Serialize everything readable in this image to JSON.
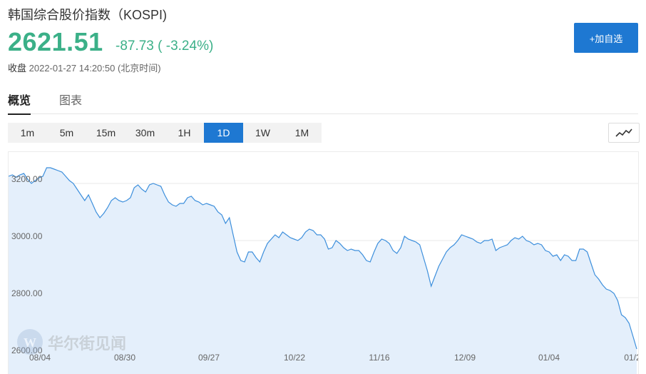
{
  "header": {
    "title": "韩国综合股价指数（KOSPI)",
    "price": "2621.51",
    "change": "-87.73 ( -3.24%)",
    "status_label": "收盘",
    "timestamp": "2022-01-27 14:20:50 (北京时间)"
  },
  "actions": {
    "add_watchlist": "+加自选"
  },
  "tabs": [
    {
      "label": "概览",
      "active": true
    },
    {
      "label": "图表",
      "active": false
    }
  ],
  "ranges": [
    {
      "label": "1m",
      "active": false
    },
    {
      "label": "5m",
      "active": false
    },
    {
      "label": "15m",
      "active": false
    },
    {
      "label": "30m",
      "active": false
    },
    {
      "label": "1H",
      "active": false
    },
    {
      "label": "1D",
      "active": true
    },
    {
      "label": "1W",
      "active": false
    },
    {
      "label": "1M",
      "active": false
    }
  ],
  "watermark": "华尔街见闻",
  "colors": {
    "accent": "#1e78d2",
    "down": "#3bb088",
    "line": "#3d8fdc",
    "area": "#e4effb"
  },
  "chart_data": {
    "type": "area",
    "title": "",
    "xlabel": "",
    "ylabel": "",
    "ylim": [
      2600,
      3260
    ],
    "yticks": [
      {
        "value": 2600,
        "label": "2600.00"
      },
      {
        "value": 2800,
        "label": "2800.00"
      },
      {
        "value": 3000,
        "label": "3000.00"
      },
      {
        "value": 3200,
        "label": "3200.00"
      }
    ],
    "xticks": [
      "08/04",
      "08/30",
      "09/27",
      "10/22",
      "11/16",
      "12/09",
      "01/04",
      "01/2"
    ],
    "grid": true,
    "legend": "none",
    "values": [
      3225,
      3230,
      3222,
      3230,
      3235,
      3215,
      3200,
      3210,
      3220,
      3225,
      3255,
      3255,
      3250,
      3245,
      3240,
      3225,
      3210,
      3200,
      3180,
      3160,
      3140,
      3160,
      3130,
      3100,
      3080,
      3095,
      3115,
      3140,
      3150,
      3140,
      3135,
      3140,
      3150,
      3185,
      3195,
      3180,
      3170,
      3195,
      3200,
      3195,
      3190,
      3160,
      3135,
      3125,
      3120,
      3130,
      3130,
      3150,
      3155,
      3140,
      3135,
      3125,
      3130,
      3125,
      3120,
      3100,
      3090,
      3060,
      3080,
      3020,
      2960,
      2930,
      2925,
      2960,
      2960,
      2940,
      2925,
      2960,
      2990,
      3005,
      3020,
      3010,
      3030,
      3020,
      3010,
      3005,
      3000,
      3010,
      3030,
      3040,
      3035,
      3020,
      3020,
      3005,
      2970,
      2975,
      3000,
      2990,
      2975,
      2965,
      2970,
      2965,
      2965,
      2950,
      2930,
      2925,
      2960,
      2990,
      3005,
      3000,
      2990,
      2965,
      2955,
      2975,
      3015,
      3005,
      3000,
      2995,
      2985,
      2940,
      2895,
      2840,
      2875,
      2910,
      2935,
      2960,
      2975,
      2985,
      3000,
      3020,
      3015,
      3010,
      3005,
      2995,
      2990,
      3000,
      3000,
      3005,
      2965,
      2975,
      2980,
      2985,
      3000,
      3010,
      3005,
      3015,
      3000,
      2995,
      2985,
      2990,
      2985,
      2965,
      2960,
      2945,
      2950,
      2930,
      2950,
      2945,
      2930,
      2930,
      2970,
      2970,
      2960,
      2920,
      2880,
      2865,
      2845,
      2830,
      2825,
      2815,
      2790,
      2740,
      2730,
      2710,
      2665,
      2620
    ]
  }
}
